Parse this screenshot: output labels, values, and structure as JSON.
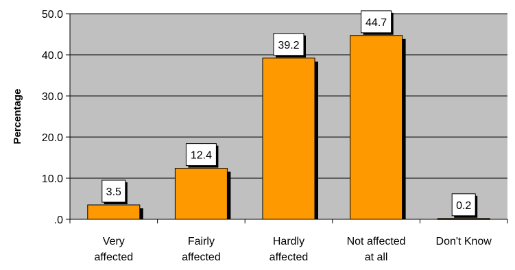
{
  "chart_data": {
    "type": "bar",
    "title": "",
    "xlabel": "",
    "ylabel": "Percentage",
    "ylim": [
      0,
      50
    ],
    "yticks": [
      ".0",
      "10.0",
      "20.0",
      "30.0",
      "40.0",
      "50.0"
    ],
    "ytick_values": [
      0,
      10,
      20,
      30,
      40,
      50
    ],
    "categories": [
      [
        "Very",
        "affected"
      ],
      [
        "Fairly",
        "affected"
      ],
      [
        "Hardly",
        "affected"
      ],
      [
        "Not affected",
        "at all"
      ],
      [
        "Don't Know"
      ]
    ],
    "values": [
      3.5,
      12.4,
      39.2,
      44.7,
      0.2
    ],
    "data_labels": [
      "3.5",
      "12.4",
      "39.2",
      "44.7",
      "0.2"
    ],
    "grid": true,
    "legend": "none",
    "colors": {
      "plot_background": "#c0c0c0",
      "bar_fill": "#ff9900",
      "bar_shadow": "#000000",
      "gridline": "#000000",
      "label_box": "#ffffff"
    }
  }
}
